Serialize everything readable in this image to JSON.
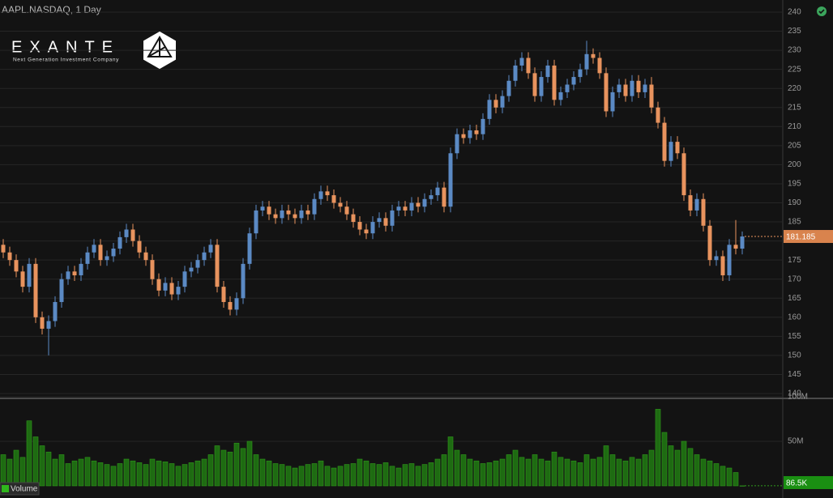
{
  "logo": {
    "name": "EXANTE",
    "tagline": "Next Generation Investment Company"
  },
  "chart_data": {
    "type": "candlestick",
    "title": "AAPL.NASDAQ, 1 Day",
    "open": [
      179,
      177,
      175,
      172,
      168,
      174,
      160,
      157,
      159,
      164,
      170,
      172,
      171,
      174,
      177,
      179,
      175,
      176,
      178,
      181,
      183,
      180,
      177,
      175,
      170,
      167,
      169,
      166,
      168,
      172,
      173,
      175,
      177,
      179,
      168,
      164,
      162,
      165,
      174,
      182,
      188,
      189,
      187,
      186,
      188,
      187,
      186,
      188,
      187,
      191,
      193,
      192,
      190,
      189,
      187,
      185,
      183,
      182,
      185,
      186,
      184,
      188,
      189,
      188,
      190,
      189,
      191,
      192,
      194,
      189,
      203,
      208,
      207,
      209,
      208,
      212,
      217,
      215,
      218,
      222,
      226,
      228,
      224,
      218,
      223,
      226,
      217,
      219,
      221,
      223,
      225,
      229,
      228,
      224,
      214,
      219,
      221,
      218,
      222,
      219,
      221,
      215,
      211,
      201,
      206,
      203,
      192,
      188,
      191,
      184,
      175,
      176,
      171,
      179,
      178
    ],
    "high": [
      180.5,
      178.5,
      176.5,
      173.5,
      175.5,
      175.5,
      161.5,
      160.5,
      165.5,
      171.5,
      173.5,
      173.5,
      175.5,
      178.5,
      180.5,
      180.5,
      177.5,
      179.5,
      182.5,
      184.5,
      184.5,
      181.5,
      178.5,
      176.5,
      171.5,
      170.5,
      170.5,
      169.5,
      173.5,
      174.5,
      176.5,
      178.5,
      180.5,
      180.5,
      169.5,
      165.5,
      166.5,
      175.5,
      183.5,
      189.5,
      190.5,
      190.5,
      188.5,
      189.5,
      189.5,
      188.5,
      189.5,
      189.5,
      192.5,
      194.5,
      194.5,
      193.5,
      191.5,
      190.5,
      188.5,
      186.5,
      184.5,
      186.5,
      187.5,
      187.5,
      189.5,
      190.5,
      190.5,
      191.5,
      191.5,
      192.5,
      193.5,
      195.5,
      195.5,
      204.5,
      209.5,
      209.5,
      210.5,
      210.5,
      213.5,
      218.5,
      218.5,
      219.5,
      223.5,
      227.5,
      229.5,
      229.5,
      225.5,
      224.5,
      227.5,
      227.5,
      220.5,
      222.5,
      224.5,
      226.5,
      232.5,
      230.5,
      229.5,
      225.5,
      220.5,
      222.5,
      222.5,
      223.5,
      223.5,
      222.5,
      223,
      216.5,
      212.5,
      207.5,
      207.5,
      204.5,
      193.5,
      192.5,
      192.5,
      185.5,
      177.5,
      177.5,
      180.5,
      185.5,
      182.5
    ],
    "low": [
      175.5,
      173.5,
      170.5,
      166.5,
      166.5,
      158.5,
      155.5,
      150,
      157.5,
      162.5,
      168.5,
      169.5,
      169.5,
      172.5,
      175.5,
      173.5,
      173.5,
      174.5,
      176.5,
      179.5,
      178.5,
      175.5,
      173.5,
      168.5,
      165.5,
      165.5,
      164.5,
      164.5,
      166.5,
      170.5,
      171.5,
      173.5,
      175.5,
      166.5,
      162.5,
      160.5,
      160.5,
      163.5,
      172.5,
      180.5,
      186.5,
      185.5,
      184.5,
      184.5,
      185.5,
      184.5,
      184.5,
      185.5,
      185.5,
      189.5,
      190.5,
      188.5,
      187.5,
      185.5,
      183.5,
      181.5,
      180.5,
      180.5,
      183.5,
      182.5,
      182.5,
      186.5,
      186.5,
      186.5,
      187.5,
      187.5,
      189.5,
      190.5,
      187.5,
      187.5,
      201.5,
      205.5,
      205.5,
      206.5,
      206.5,
      210.5,
      213.5,
      213.5,
      216.5,
      220.5,
      224.5,
      222.5,
      216.5,
      216.5,
      221.5,
      215.5,
      215.5,
      217.5,
      219.5,
      221.5,
      223.5,
      226.5,
      222.5,
      212.5,
      212.5,
      217.5,
      216.5,
      216.5,
      217.5,
      217.5,
      213.5,
      209.5,
      199.5,
      199.5,
      201.5,
      190.5,
      186.5,
      186.5,
      182.5,
      173.5,
      173.5,
      169.5,
      169.5,
      176.5,
      176.5
    ],
    "close": [
      177,
      175,
      172,
      168,
      174,
      160,
      157,
      159,
      164,
      170,
      172,
      171,
      174,
      177,
      179,
      175,
      176,
      178,
      181,
      183,
      180,
      177,
      175,
      170,
      167,
      169,
      166,
      168,
      172,
      173,
      175,
      177,
      179,
      168,
      164,
      162,
      165,
      174,
      182,
      188,
      189,
      187,
      186,
      188,
      187,
      186,
      188,
      187,
      191,
      193,
      192,
      190,
      189,
      187,
      185,
      183,
      182,
      185,
      186,
      184,
      188,
      189,
      188,
      190,
      189,
      191,
      192,
      194,
      189,
      203,
      208,
      207,
      209,
      208,
      212,
      217,
      215,
      218,
      222,
      226,
      228,
      224,
      218,
      223,
      226,
      217,
      219,
      221,
      223,
      225,
      229,
      228,
      224,
      214,
      219,
      221,
      218,
      222,
      219,
      221,
      215,
      211,
      201,
      206,
      203,
      192,
      188,
      191,
      184,
      175,
      176,
      171,
      179,
      178,
      181.185
    ],
    "up_color": "#5b8ac4",
    "down_color": "#e8935e",
    "ylim": [
      140,
      240
    ],
    "yticks": [
      140,
      145,
      150,
      155,
      160,
      165,
      170,
      175,
      180,
      185,
      190,
      195,
      200,
      205,
      210,
      215,
      220,
      225,
      230,
      235,
      240
    ],
    "grid": true,
    "last_price": 181.185,
    "volume": {
      "name": "Volume",
      "color": "#1e6b12",
      "values": [
        35,
        30,
        40,
        32,
        73,
        55,
        45,
        38,
        30,
        35,
        25,
        28,
        30,
        32,
        28,
        26,
        24,
        22,
        25,
        30,
        28,
        26,
        24,
        30,
        28,
        27,
        25,
        22,
        24,
        26,
        28,
        30,
        35,
        45,
        40,
        38,
        48,
        42,
        50,
        35,
        30,
        28,
        25,
        24,
        22,
        20,
        22,
        24,
        25,
        28,
        22,
        20,
        22,
        24,
        25,
        30,
        28,
        25,
        24,
        26,
        22,
        20,
        24,
        25,
        22,
        24,
        26,
        30,
        35,
        55,
        40,
        35,
        30,
        28,
        25,
        26,
        28,
        30,
        35,
        40,
        32,
        30,
        35,
        30,
        28,
        38,
        32,
        30,
        28,
        26,
        35,
        30,
        32,
        45,
        35,
        30,
        28,
        32,
        30,
        35,
        40,
        86,
        60,
        45,
        40,
        50,
        42,
        35,
        30,
        28,
        25,
        22,
        20,
        15,
        0.0865
      ],
      "ylim": [
        0,
        100
      ],
      "yticks": [
        {
          "value": 50,
          "label": "50M"
        },
        {
          "value": 100,
          "label": "100M"
        }
      ],
      "last_label": "86.5K"
    }
  }
}
